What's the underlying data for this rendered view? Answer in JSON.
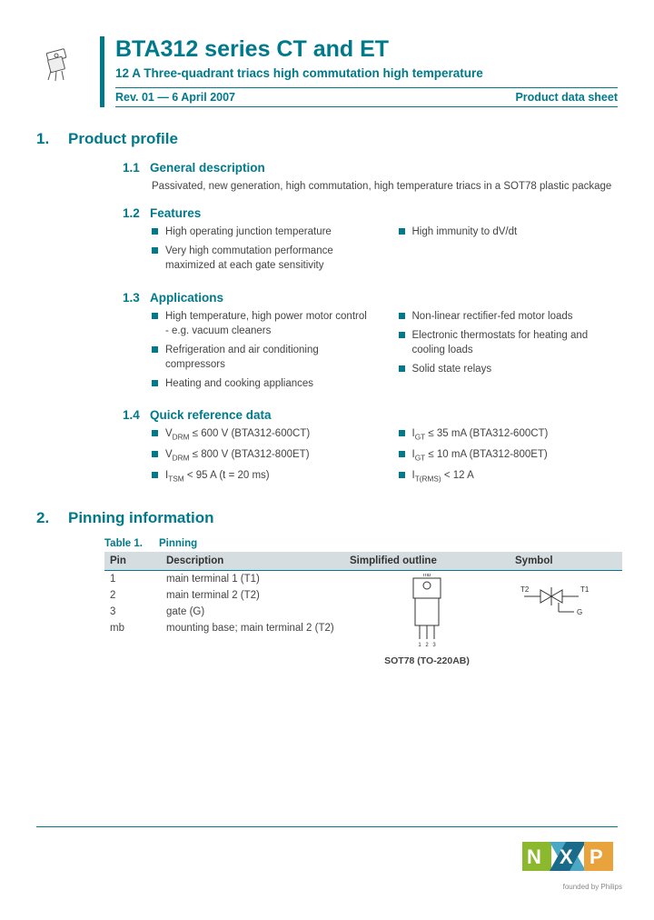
{
  "header": {
    "title": "BTA312 series CT and ET",
    "subtitle": "12 A Three-quadrant triacs high commutation high temperature",
    "revision": "Rev. 01 — 6 April 2007",
    "doc_type": "Product data sheet"
  },
  "section1": {
    "num": "1.",
    "title": "Product profile",
    "sub1": {
      "num": "1.1",
      "title": "General description",
      "text": "Passivated, new generation, high commutation, high temperature triacs in a SOT78 plastic package"
    },
    "sub2": {
      "num": "1.2",
      "title": "Features",
      "left": [
        "High operating junction temperature",
        "Very high commutation performance maximized at each gate sensitivity"
      ],
      "right": [
        "High immunity to dV/dt"
      ]
    },
    "sub3": {
      "num": "1.3",
      "title": "Applications",
      "left": [
        "High temperature, high power motor control - e.g. vacuum cleaners",
        "Refrigeration and air conditioning compressors",
        "Heating and cooking appliances"
      ],
      "right": [
        "Non-linear rectifier-fed motor loads",
        "Electronic thermostats for heating and cooling loads",
        "Solid state relays"
      ]
    },
    "sub4": {
      "num": "1.4",
      "title": "Quick reference data",
      "left": [
        "V<sub>DRM</sub> ≤ 600 V (BTA312-600CT)",
        "V<sub>DRM</sub> ≤ 800 V (BTA312-800ET)",
        "I<sub>TSM</sub> &lt; 95 A (t = 20 ms)"
      ],
      "right": [
        "I<sub>GT</sub> ≤ 35 mA (BTA312-600CT)",
        "I<sub>GT</sub> ≤ 10 mA (BTA312-800ET)",
        "I<sub>T(RMS)</sub> &lt; 12 A"
      ]
    }
  },
  "section2": {
    "num": "2.",
    "title": "Pinning information",
    "table_label": "Table 1.",
    "table_title": "Pinning",
    "columns": [
      "Pin",
      "Description",
      "Simplified outline",
      "Symbol"
    ],
    "rows": [
      [
        "1",
        "main terminal 1 (T1)"
      ],
      [
        "2",
        "main terminal 2 (T2)"
      ],
      [
        "3",
        "gate (G)"
      ],
      [
        "mb",
        "mounting base; main terminal 2 (T2)"
      ]
    ],
    "package_label": "SOT78 (TO-220AB)",
    "symbol_t2": "T2",
    "symbol_t1": "T1",
    "symbol_g": "G"
  },
  "logo_tag": "founded by Philips"
}
